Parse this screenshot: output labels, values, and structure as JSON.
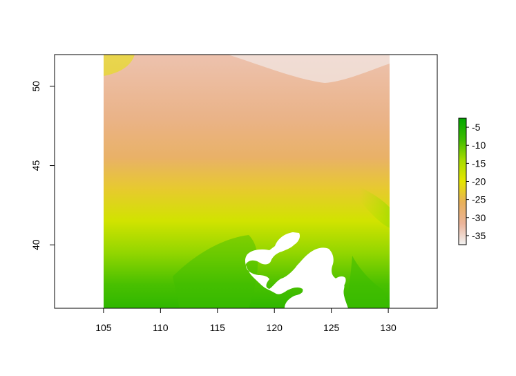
{
  "chart_data": {
    "type": "heatmap",
    "title": "",
    "xlabel": "",
    "ylabel": "",
    "x_ticks": [
      105,
      110,
      115,
      120,
      125,
      130
    ],
    "y_ticks": [
      40,
      45,
      50
    ],
    "xlim": [
      100.7,
      134.3
    ],
    "ylim": [
      36.0,
      52.0
    ],
    "extent": {
      "lon": [
        105,
        130
      ],
      "lat": [
        36.0,
        52.0
      ]
    },
    "legend": {
      "position": "right",
      "range": [
        -37.5,
        -2.5
      ],
      "ticks": [
        -5,
        -10,
        -15,
        -20,
        -25,
        -30,
        -35
      ],
      "colors": [
        "#f2f2f2",
        "#ebb49a",
        "#e8b05a",
        "#e6e600",
        "#a8dc00",
        "#3dbc00",
        "#00a600"
      ]
    },
    "gradient_rows": [
      {
        "lat": 52.0,
        "value": -33
      },
      {
        "lat": 48.0,
        "value": -30
      },
      {
        "lat": 45.5,
        "value": -27
      },
      {
        "lat": 43.5,
        "value": -23
      },
      {
        "lat": 41.5,
        "value": -18
      },
      {
        "lat": 39.5,
        "value": -13
      },
      {
        "lat": 37.5,
        "value": -9
      },
      {
        "lat": 36.0,
        "value": -7
      }
    ]
  }
}
